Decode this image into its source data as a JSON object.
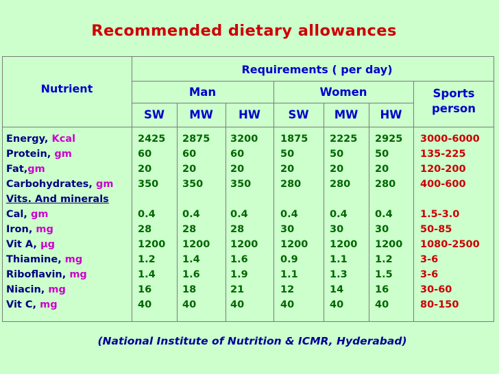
{
  "title": "Recommended dietary allowances",
  "header": {
    "nutrient": "Nutrient",
    "requirements": "Requirements ( per day)",
    "man": "Man",
    "women": "Women",
    "sports_line1": "Sports",
    "sports_line2": "person",
    "man_sub": [
      "SW",
      "MW",
      "HW"
    ],
    "women_sub": [
      "SW",
      "MW",
      "HW"
    ]
  },
  "nutrients": [
    {
      "name": "Energy, ",
      "unit": "Kcal"
    },
    {
      "name": "Protein, ",
      "unit": "gm"
    },
    {
      "name": "Fat,",
      "unit": "gm"
    },
    {
      "name": "Carbohydrates, ",
      "unit": "gm"
    },
    {
      "heading": "Vits. And minerals"
    },
    {
      "name": "Cal, ",
      "unit": "gm"
    },
    {
      "name": "Iron, ",
      "unit": "mg"
    },
    {
      "name": "Vit A, ",
      "unit": "µg"
    },
    {
      "name": "Thiamine, ",
      "unit": "mg"
    },
    {
      "name": "Riboflavin, ",
      "unit": "mg"
    },
    {
      "name": "Niacin, ",
      "unit": "mg"
    },
    {
      "name": "Vit C, ",
      "unit": "mg"
    }
  ],
  "columns": [
    {
      "group": "man",
      "sub": "SW",
      "values": [
        "2425",
        "60",
        "20",
        "350",
        "",
        "0.4",
        "28",
        "1200",
        "1.2",
        "1.4",
        "16",
        "40"
      ]
    },
    {
      "group": "man",
      "sub": "MW",
      "values": [
        "2875",
        "60",
        "20",
        "350",
        "",
        "0.4",
        "28",
        "1200",
        "1.4",
        "1.6",
        "18",
        "40"
      ]
    },
    {
      "group": "man",
      "sub": "HW",
      "values": [
        "3200",
        "60",
        "20",
        "350",
        "",
        "0.4",
        "28",
        "1200",
        "1.6",
        "1.9",
        "21",
        "40"
      ]
    },
    {
      "group": "women",
      "sub": "SW",
      "values": [
        "1875",
        "50",
        "20",
        "280",
        "",
        "0.4",
        "30",
        "1200",
        "0.9",
        "1.1",
        "12",
        "40"
      ]
    },
    {
      "group": "women",
      "sub": "MW",
      "values": [
        "2225",
        "50",
        "20",
        "280",
        "",
        "0.4",
        "30",
        "1200",
        "1.1",
        "1.3",
        "14",
        "40"
      ]
    },
    {
      "group": "women",
      "sub": "HW",
      "values": [
        "2925",
        "50",
        "20",
        "280",
        "",
        "0.4",
        "30",
        "1200",
        "1.2",
        "1.5",
        "16",
        "40"
      ]
    },
    {
      "group": "sports",
      "sub": "",
      "values": [
        "3000-6000",
        "135-225",
        "120-200",
        "400-600",
        "",
        "1.5-3.0",
        "50-85",
        "1080-2500",
        "3-6",
        "3-6",
        "30-60",
        "80-150"
      ]
    }
  ],
  "footer": "(National Institute of Nutrition & ICMR, Hyderabad)",
  "colors": {
    "background": "#ccffcc",
    "title": "#cc0000",
    "header": "#0000cc",
    "nutrient_name": "#000080",
    "unit": "#cc00cc",
    "values": "#006600",
    "sports_values": "#cc0000",
    "footer": "#000099"
  }
}
